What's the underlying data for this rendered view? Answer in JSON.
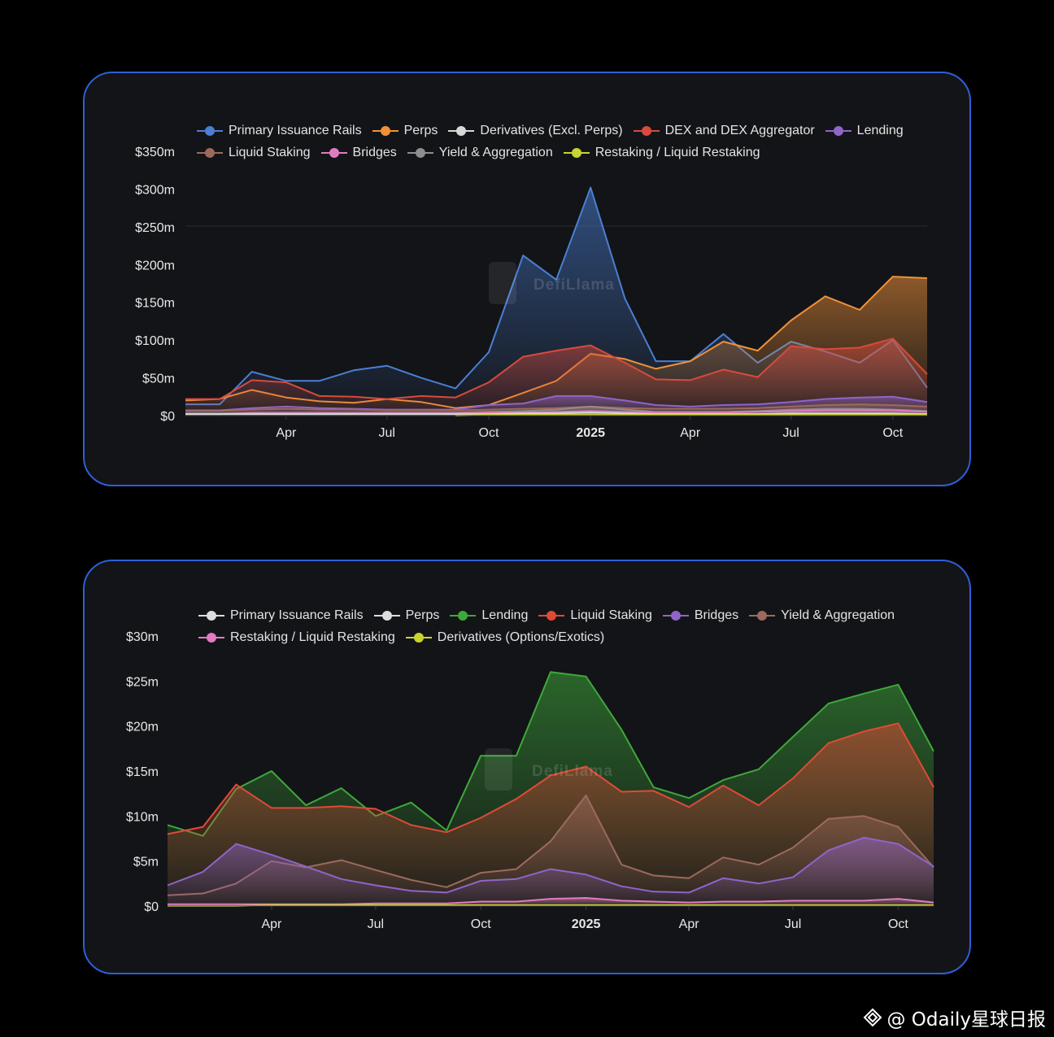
{
  "charts": [
    {
      "id": "top",
      "type": "area",
      "watermark": "DefiLlama",
      "y_ticks": [
        "$0",
        "$50m",
        "$100m",
        "$150m",
        "$200m",
        "$250m",
        "$300m",
        "$350m"
      ],
      "y_tick_values": [
        0,
        50,
        100,
        150,
        200,
        250,
        300,
        350
      ],
      "ylim": [
        0,
        350
      ],
      "x_ticks": [
        "Apr",
        "Jul",
        "Oct",
        "2025",
        "Apr",
        "Jul",
        "Oct"
      ],
      "x_tick_dates": [
        "2024-04-01",
        "2024-07-01",
        "2024-10-01",
        "2025-01-01",
        "2025-04-01",
        "2025-07-01",
        "2025-10-01"
      ],
      "x_bold": "2025",
      "x": [
        "2024-01-01",
        "2024-02-01",
        "2024-03-01",
        "2024-04-01",
        "2024-05-01",
        "2024-06-01",
        "2024-07-01",
        "2024-08-01",
        "2024-09-01",
        "2024-10-01",
        "2024-11-01",
        "2024-12-01",
        "2025-01-01",
        "2025-02-01",
        "2025-03-01",
        "2025-04-01",
        "2025-05-01",
        "2025-06-01",
        "2025-07-01",
        "2025-08-01",
        "2025-09-01",
        "2025-10-01",
        "2025-11-01"
      ],
      "legend_rows": [
        [
          "Primary Issuance Rails",
          "Perps",
          "Derivatives (Excl. Perps)",
          "DEX and DEX Aggregator",
          "Lending"
        ],
        [
          "Liquid Staking",
          "Bridges",
          "Yield & Aggregation",
          "Restaking / Liquid Restaking"
        ]
      ],
      "series": [
        {
          "name": "Primary Issuance Rails",
          "color": "#4a7fd4",
          "values": [
            15,
            15,
            58,
            46,
            46,
            60,
            66,
            50,
            36,
            84,
            212,
            180,
            302,
            155,
            72,
            72,
            108,
            70,
            98,
            85,
            70,
            100,
            37
          ]
        },
        {
          "name": "Perps",
          "color": "#f0913a",
          "values": [
            20,
            22,
            34,
            24,
            19,
            17,
            22,
            18,
            10,
            14,
            30,
            46,
            82,
            75,
            62,
            72,
            98,
            86,
            126,
            158,
            140,
            184,
            182
          ]
        },
        {
          "name": "Derivatives (Excl. Perps)",
          "color": "#d8d8d8",
          "values": [
            2,
            2,
            2,
            2,
            2,
            2,
            2,
            2,
            2,
            2,
            3,
            3,
            4,
            3,
            2,
            2,
            2,
            2,
            3,
            3,
            3,
            3,
            2
          ]
        },
        {
          "name": "DEX and DEX Aggregator",
          "color": "#d64b3c",
          "values": [
            22,
            22,
            47,
            44,
            26,
            25,
            22,
            26,
            24,
            44,
            78,
            86,
            93,
            70,
            48,
            47,
            61,
            51,
            92,
            88,
            90,
            102,
            55
          ]
        },
        {
          "name": "Lending",
          "color": "#9064c8",
          "values": [
            7,
            7,
            10,
            12,
            10,
            9,
            8,
            8,
            8,
            14,
            16,
            26,
            26,
            20,
            14,
            12,
            14,
            15,
            18,
            22,
            24,
            25,
            18
          ]
        },
        {
          "name": "Liquid Staking",
          "color": "#9c6a5c",
          "values": [
            6,
            6,
            8,
            9,
            8,
            8,
            7,
            7,
            7,
            8,
            9,
            10,
            12,
            10,
            9,
            9,
            9,
            10,
            12,
            14,
            15,
            14,
            12
          ]
        },
        {
          "name": "Bridges",
          "color": "#e07cc0",
          "values": [
            2,
            2,
            3,
            3,
            3,
            3,
            3,
            3,
            3,
            4,
            4,
            5,
            6,
            5,
            4,
            4,
            4,
            5,
            6,
            7,
            7,
            7,
            5
          ]
        },
        {
          "name": "Yield & Aggregation",
          "color": "#8e8e8e",
          "values": [
            3,
            3,
            4,
            4,
            4,
            4,
            4,
            4,
            4,
            5,
            6,
            8,
            12,
            8,
            5,
            5,
            5,
            6,
            8,
            9,
            9,
            8,
            6
          ]
        },
        {
          "name": "Restaking / Liquid Restaking",
          "color": "#c8d430",
          "values": [
            null,
            null,
            null,
            null,
            null,
            null,
            null,
            null,
            0,
            1,
            1,
            1,
            1,
            1,
            1,
            1,
            1,
            1,
            1,
            1,
            1,
            1,
            1
          ]
        }
      ]
    },
    {
      "id": "bottom",
      "type": "area",
      "watermark": "DefiLlama",
      "y_ticks": [
        "$0",
        "$5m",
        "$10m",
        "$15m",
        "$20m",
        "$25m",
        "$30m"
      ],
      "y_tick_values": [
        0,
        5,
        10,
        15,
        20,
        25,
        30
      ],
      "ylim": [
        0,
        30
      ],
      "x_ticks": [
        "Apr",
        "Jul",
        "Oct",
        "2025",
        "Apr",
        "Jul",
        "Oct"
      ],
      "x_tick_dates": [
        "2024-04-01",
        "2024-07-01",
        "2024-10-01",
        "2025-01-01",
        "2025-04-01",
        "2025-07-01",
        "2025-10-01"
      ],
      "x_bold": "2025",
      "x": [
        "2024-01-01",
        "2024-02-01",
        "2024-03-01",
        "2024-04-01",
        "2024-05-01",
        "2024-06-01",
        "2024-07-01",
        "2024-08-01",
        "2024-09-01",
        "2024-10-01",
        "2024-11-01",
        "2024-12-01",
        "2025-01-01",
        "2025-02-01",
        "2025-03-01",
        "2025-04-01",
        "2025-05-01",
        "2025-06-01",
        "2025-07-01",
        "2025-08-01",
        "2025-09-01",
        "2025-10-01",
        "2025-11-01"
      ],
      "legend_rows": [
        [
          "Primary Issuance Rails",
          "Perps",
          "Lending",
          "Liquid Staking",
          "Bridges",
          "Yield & Aggregation"
        ],
        [
          "Restaking / Liquid Restaking",
          "Derivatives (Options/Exotics)"
        ]
      ],
      "series": [
        {
          "name": "Primary Issuance Rails",
          "color": "#e0e0e0",
          "values": [
            null,
            null,
            null,
            null,
            null,
            null,
            null,
            null,
            null,
            null,
            null,
            null,
            null,
            null,
            null,
            null,
            null,
            null,
            null,
            null,
            null,
            null,
            null
          ],
          "legend_color": "#dddddd"
        },
        {
          "name": "Perps",
          "color": "#e0e0e0",
          "values": [
            null,
            null,
            null,
            null,
            null,
            null,
            null,
            null,
            null,
            null,
            null,
            null,
            null,
            null,
            null,
            null,
            null,
            null,
            null,
            null,
            null,
            null,
            null
          ],
          "legend_color": "#dddddd"
        },
        {
          "name": "Lending",
          "color": "#3ea83a",
          "values": [
            9,
            7.8,
            13,
            15,
            11.2,
            13.1,
            10,
            11.5,
            8.4,
            16.7,
            16.7,
            26,
            25.5,
            19.6,
            13.2,
            12,
            14,
            15.2,
            18.8,
            22.5,
            23.6,
            24.6,
            17.2
          ]
        },
        {
          "name": "Liquid Staking",
          "color": "#e04a36",
          "values": [
            8,
            8.8,
            13.5,
            10.9,
            10.9,
            11.1,
            10.8,
            9,
            8.2,
            9.8,
            11.9,
            14.5,
            15.5,
            12.7,
            12.8,
            11,
            13.4,
            11.2,
            14.2,
            18.1,
            19.4,
            20.3,
            13.2
          ]
        },
        {
          "name": "Bridges",
          "color": "#9064c8",
          "values": [
            2.3,
            3.8,
            6.9,
            5.7,
            4.4,
            3,
            2.3,
            1.7,
            1.5,
            2.8,
            3,
            4.1,
            3.5,
            2.2,
            1.6,
            1.5,
            3.1,
            2.5,
            3.2,
            6.2,
            7.6,
            6.9,
            4.4
          ]
        },
        {
          "name": "Yield & Aggregation",
          "color": "#9c6a5c",
          "values": [
            1.2,
            1.4,
            2.5,
            5,
            4.3,
            5.1,
            4,
            2.9,
            2.1,
            3.7,
            4.1,
            7.2,
            12.3,
            4.6,
            3.4,
            3.1,
            5.4,
            4.6,
            6.5,
            9.7,
            10,
            8.8,
            4.3
          ]
        },
        {
          "name": "Restaking / Liquid Restaking",
          "color": "#e07cc0",
          "values": [
            0.2,
            0.2,
            0.2,
            0.2,
            0.2,
            0.2,
            0.3,
            0.3,
            0.3,
            0.5,
            0.5,
            0.8,
            0.9,
            0.6,
            0.5,
            0.4,
            0.5,
            0.5,
            0.6,
            0.6,
            0.6,
            0.8,
            0.4
          ]
        },
        {
          "name": "Derivatives (Options/Exotics)",
          "color": "#c8d430",
          "values": [
            0,
            0,
            0,
            0.1,
            0.1,
            0.1,
            0.1,
            0.1,
            0.1,
            0.1,
            0.1,
            0.1,
            0.1,
            0.1,
            0.1,
            0.1,
            0.1,
            0.1,
            0.1,
            0.1,
            0.1,
            0.1,
            0.1
          ]
        }
      ]
    }
  ],
  "credit": {
    "text": "@ Odaily星球日报"
  }
}
